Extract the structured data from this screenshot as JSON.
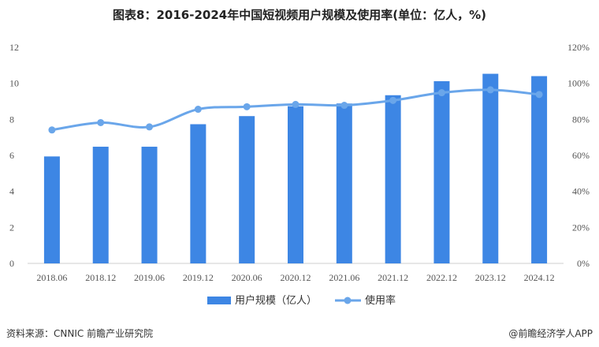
{
  "chart_data": {
    "type": "bar+line",
    "title": "图表8：2016-2024年中国短视频用户规模及使用率(单位：亿人，%)",
    "categories": [
      "2018.06",
      "2018.12",
      "2019.06",
      "2019.12",
      "2020.06",
      "2020.12",
      "2021.06",
      "2021.12",
      "2022.12",
      "2023.12",
      "2024.12"
    ],
    "series": [
      {
        "name": "用户规模（亿人）",
        "type": "bar",
        "axis": "left",
        "values": [
          5.94,
          6.48,
          6.48,
          7.73,
          8.18,
          8.73,
          8.88,
          9.34,
          10.12,
          10.53,
          10.4
        ]
      },
      {
        "name": "使用率",
        "type": "line",
        "axis": "right",
        "values": [
          74.1,
          78.2,
          75.8,
          85.6,
          87.0,
          88.3,
          87.8,
          90.5,
          94.8,
          96.4,
          93.8
        ]
      }
    ],
    "left_axis": {
      "ylim": [
        0,
        12
      ],
      "ticks": [
        "0",
        "2",
        "4",
        "6",
        "8",
        "10",
        "12"
      ]
    },
    "right_axis": {
      "ylim": [
        0,
        120
      ],
      "ticks": [
        "0%",
        "20%",
        "40%",
        "60%",
        "80%",
        "100%",
        "120%"
      ]
    },
    "legend_position": "bottom",
    "grid": false,
    "colors": {
      "bar": "#3d86e4",
      "line": "#6aa6ea"
    }
  },
  "source": {
    "left": "资料来源：CNNIC 前瞻产业研究院",
    "right": "@前瞻经济学人APP"
  }
}
